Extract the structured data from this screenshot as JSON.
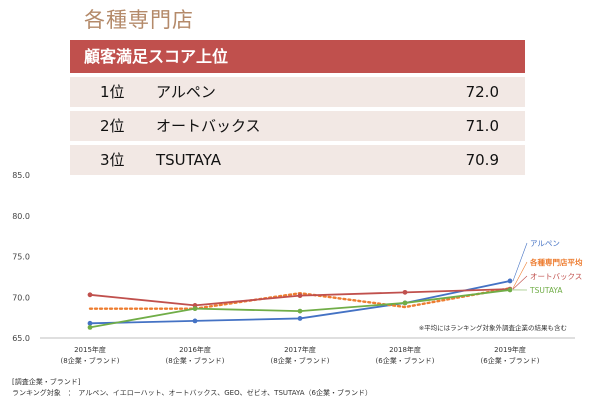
{
  "page_title": "各種専門店",
  "ranking": {
    "header": "顧客満足スコア上位",
    "rows": [
      {
        "rank": "1位",
        "name": "アルペン",
        "score": "72.0"
      },
      {
        "rank": "2位",
        "name": "オートバックス",
        "score": "71.0"
      },
      {
        "rank": "3位",
        "name": "TSUTAYA",
        "score": "70.9"
      }
    ]
  },
  "chart_data": {
    "type": "line",
    "categories": [
      [
        "2015年度",
        "(8企業・ブランド)"
      ],
      [
        "2016年度",
        "(8企業・ブランド)"
      ],
      [
        "2017年度",
        "(8企業・ブランド)"
      ],
      [
        "2018年度",
        "(6企業・ブランド)"
      ],
      [
        "2019年度",
        "(6企業・ブランド)"
      ]
    ],
    "ylim": [
      65,
      85
    ],
    "yticks": [
      "65.0",
      "70.0",
      "75.0",
      "80.0",
      "85.0"
    ],
    "grid": false,
    "series": [
      {
        "name": "アルペン",
        "color": "#4472c4",
        "style": "solid",
        "values": [
          66.8,
          67.1,
          67.4,
          69.3,
          72.0
        ]
      },
      {
        "name": "各種専門店平均",
        "color": "#ed7d31",
        "style": "dotted",
        "values": [
          68.6,
          68.6,
          70.5,
          68.8,
          71.1
        ]
      },
      {
        "name": "オートバックス",
        "color": "#c0504d",
        "style": "solid",
        "values": [
          70.3,
          69.0,
          70.2,
          70.6,
          71.0
        ]
      },
      {
        "name": "TSUTAYA",
        "color": "#70ad47",
        "style": "solid",
        "values": [
          66.3,
          68.6,
          68.3,
          69.3,
          70.9
        ]
      }
    ],
    "note": "※平均にはランキング対象外調査企業の結果も含む"
  },
  "footnotes": {
    "line1": "[調査企業・ブランド]",
    "line2": "ランキング対象　：　アルペン、イエローハット、オートバックス、GEO、ゼビオ、TSUTAYA（6企業・ブランド）"
  }
}
